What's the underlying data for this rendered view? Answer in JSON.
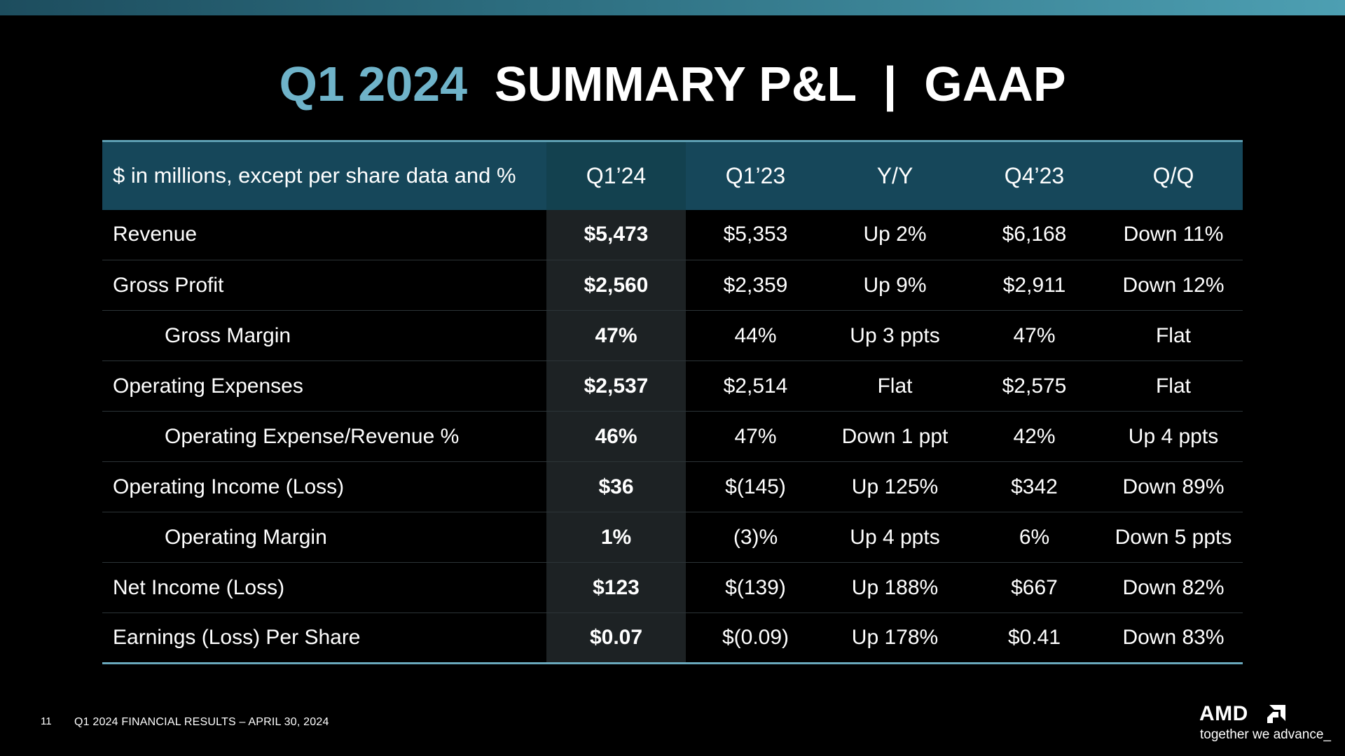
{
  "top_bar": {
    "colors": [
      "#1d4d5e",
      "#4d9fb2"
    ]
  },
  "title": {
    "accent": "Q1 2024",
    "main": "SUMMARY P&L  |  GAAP",
    "accent_color": "#6fb3c9"
  },
  "table": {
    "headers": [
      "$ in millions, except per share data and %",
      "Q1’24",
      "Q1’23",
      "Y/Y",
      "Q4’23",
      "Q/Q"
    ],
    "rows": [
      {
        "label": "Revenue",
        "indent": false,
        "values": [
          "$5,473",
          "$5,353",
          "Up 2%",
          "$6,168",
          "Down 11%"
        ]
      },
      {
        "label": "Gross Profit",
        "indent": false,
        "values": [
          "$2,560",
          "$2,359",
          "Up 9%",
          "$2,911",
          "Down 12%"
        ]
      },
      {
        "label": "Gross Margin",
        "indent": true,
        "values": [
          "47%",
          "44%",
          "Up 3 ppts",
          "47%",
          "Flat"
        ]
      },
      {
        "label": "Operating Expenses",
        "indent": false,
        "values": [
          "$2,537",
          "$2,514",
          "Flat",
          "$2,575",
          "Flat"
        ]
      },
      {
        "label": "Operating Expense/Revenue %",
        "indent": true,
        "values": [
          "46%",
          "47%",
          "Down 1 ppt",
          "42%",
          "Up 4 ppts"
        ]
      },
      {
        "label": "Operating Income (Loss)",
        "indent": false,
        "values": [
          "$36",
          "$(145)",
          "Up 125%",
          "$342",
          "Down 89%"
        ]
      },
      {
        "label": "Operating Margin",
        "indent": true,
        "values": [
          "1%",
          "(3)%",
          "Up 4 ppts",
          "6%",
          "Down 5 ppts"
        ]
      },
      {
        "label": "Net Income (Loss)",
        "indent": false,
        "values": [
          "$123",
          "$(139)",
          "Up 188%",
          "$667",
          "Down 82%"
        ]
      },
      {
        "label": "Earnings (Loss) Per Share",
        "indent": false,
        "values": [
          "$0.07",
          "$(0.09)",
          "Up 178%",
          "$0.41",
          "Down 83%"
        ]
      }
    ]
  },
  "footer": {
    "page_number": "11",
    "text": "Q1 2024 FINANCIAL RESULTS – APRIL 30, 2024"
  },
  "logo": {
    "wordmark": "AMD",
    "icon": "amd-arrow-icon",
    "tagline": "together we advance_"
  }
}
